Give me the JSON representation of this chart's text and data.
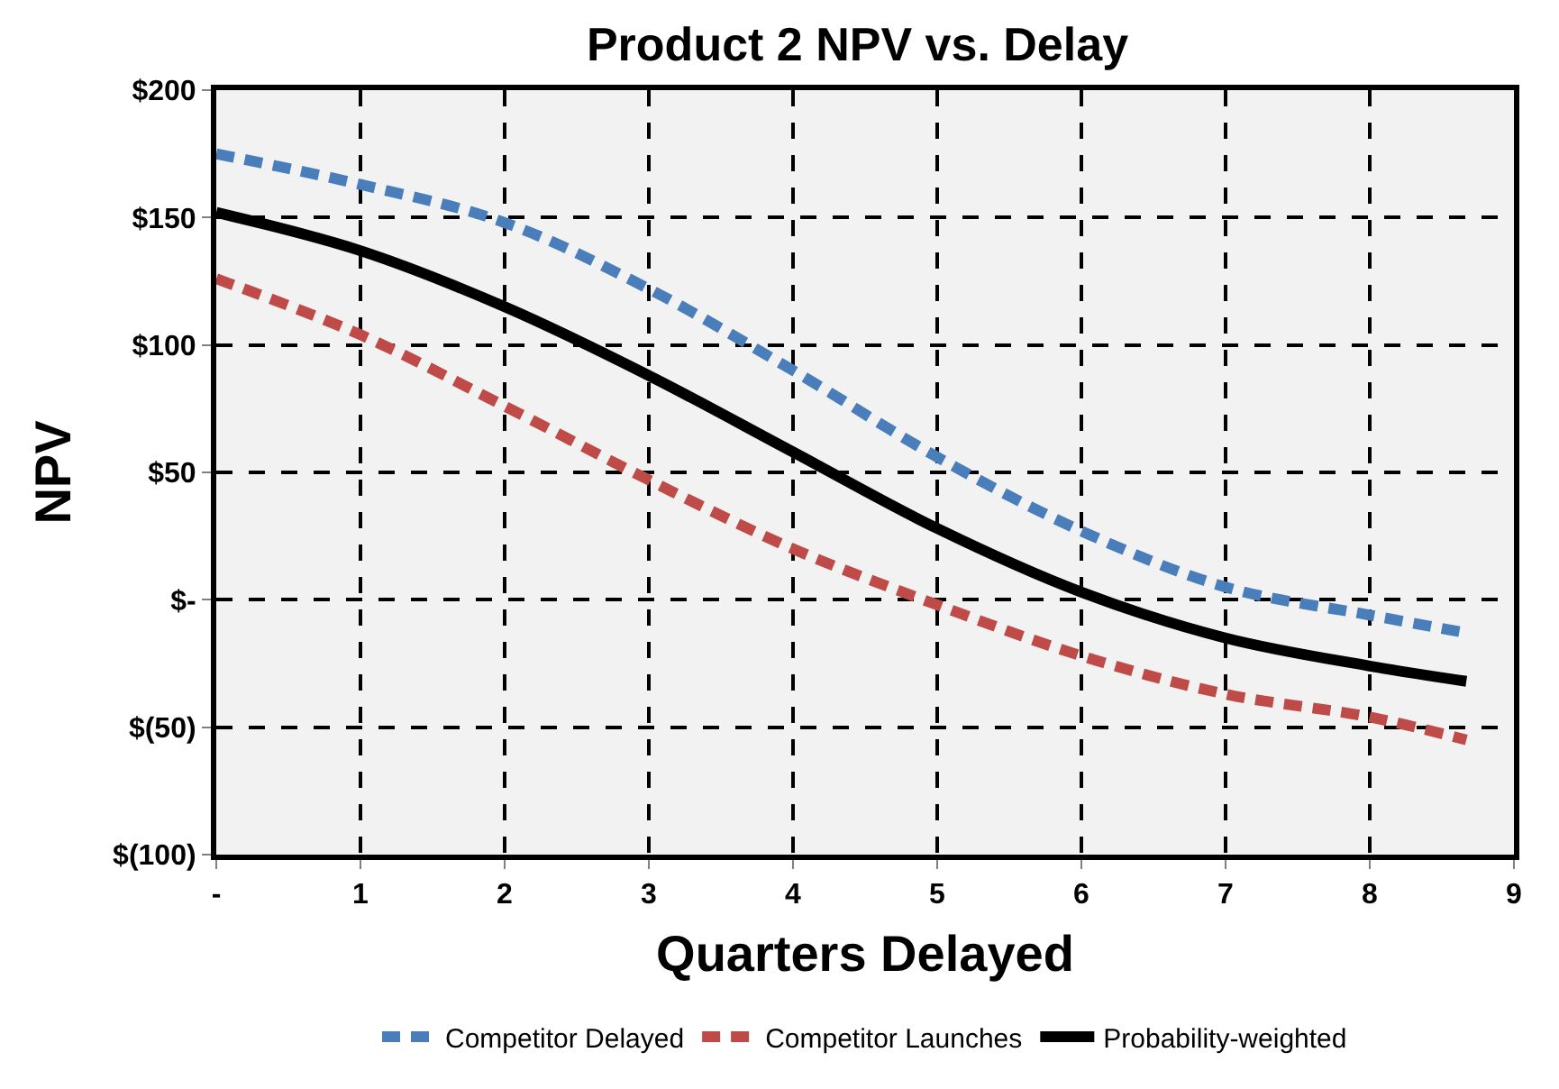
{
  "chart_data": {
    "type": "line",
    "title": "Product 2 NPV vs. Delay",
    "xlabel": "Quarters Delayed",
    "ylabel": "NPV",
    "x": [
      0,
      1,
      2,
      3,
      4,
      5,
      6,
      7,
      8,
      8.67
    ],
    "series": [
      {
        "name": "Competitor Delayed",
        "color": "#4a7ebb",
        "line_style": "dashed",
        "values": [
          175,
          163,
          148,
          122,
          90,
          56,
          27,
          5,
          -6,
          -13
        ]
      },
      {
        "name": "Competitor Launches",
        "color": "#be4b48",
        "line_style": "dashed",
        "values": [
          126,
          104,
          76,
          47,
          20,
          -2,
          -22,
          -37,
          -46,
          -55
        ]
      },
      {
        "name": "Probability-weighted",
        "color": "#000000",
        "line_style": "solid",
        "values": [
          152,
          137,
          115,
          88,
          58,
          28,
          3,
          -15,
          -26,
          -32
        ]
      }
    ],
    "xlim": [
      0,
      9
    ],
    "xticks": [
      {
        "value": 0,
        "label": "-"
      },
      1,
      2,
      3,
      4,
      5,
      6,
      7,
      8,
      9
    ],
    "ylim": [
      -100,
      200
    ],
    "yticks": [
      {
        "value": -100,
        "label": "$(100)"
      },
      {
        "value": -50,
        "label": "$(50)"
      },
      {
        "value": 0,
        "label": "$-"
      },
      {
        "value": 50,
        "label": "$50"
      },
      {
        "value": 100,
        "label": "$100"
      },
      {
        "value": 150,
        "label": "$150"
      },
      {
        "value": 200,
        "label": "$200"
      }
    ],
    "grid": true,
    "legend": "bottom",
    "marker": "none"
  }
}
